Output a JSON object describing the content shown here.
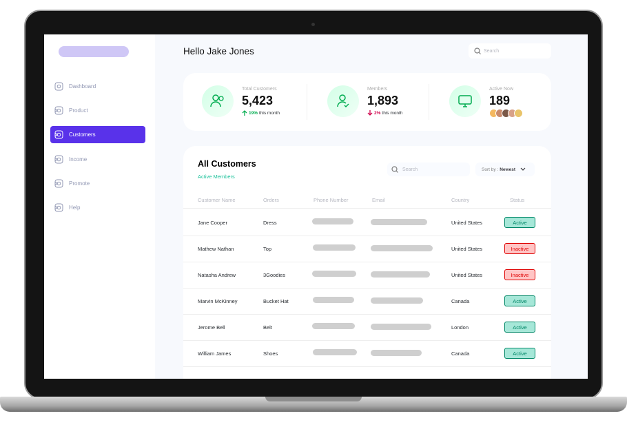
{
  "sidebar": {
    "items": [
      {
        "label": "Dashboard",
        "active": false,
        "chevron": false
      },
      {
        "label": "Product",
        "active": false,
        "chevron": true
      },
      {
        "label": "Customers",
        "active": true,
        "chevron": true
      },
      {
        "label": "Income",
        "active": false,
        "chevron": true
      },
      {
        "label": "Promote",
        "active": false,
        "chevron": true
      },
      {
        "label": "Help",
        "active": false,
        "chevron": true
      }
    ]
  },
  "header": {
    "greeting": "Hello Jake Jones",
    "search_placeholder": "Search"
  },
  "stats": [
    {
      "label": "Total Customers",
      "value": "5,423",
      "change": "19%",
      "period": "this month",
      "trend": "up",
      "change_color": "#00ac4f"
    },
    {
      "label": "Members",
      "value": "1,893",
      "change": "2%",
      "period": "this month",
      "trend": "down",
      "change_color": "#d0004b"
    },
    {
      "label": "Active Now",
      "value": "189"
    }
  ],
  "table": {
    "title": "All Customers",
    "subtitle": "Active Members",
    "search_placeholder": "Search",
    "sort_label": "Sort by :",
    "sort_value": "Newest",
    "columns": [
      "Customer Name",
      "Orders",
      "Phone Number",
      "Email",
      "Country",
      "Status"
    ],
    "rows": [
      {
        "name": "Jane Cooper",
        "order": "Dress",
        "country": "United States",
        "status": {
          "label": "Active",
          "color": "#008767",
          "background": "#a6e7d8"
        }
      },
      {
        "name": "Mathew Nathan",
        "order": "Top",
        "country": "United States",
        "status": {
          "label": "Inactive",
          "color": "#df0404",
          "background": "#ffc5c5"
        }
      },
      {
        "name": "Natasha Andrew",
        "order": "3Goodies",
        "country": "United States",
        "status": {
          "label": "Inactive",
          "color": "#df0404",
          "background": "#ffc5c5"
        }
      },
      {
        "name": "Marvin McKinney",
        "order": "Bucket Hat",
        "country": "Canada",
        "status": {
          "label": "Active",
          "color": "#008767",
          "background": "#a6e7d8"
        }
      },
      {
        "name": "Jerome Bell",
        "order": "Belt",
        "country": "London",
        "status": {
          "label": "Active",
          "color": "#008767",
          "background": "#a6e7d8"
        }
      },
      {
        "name": "William James",
        "order": "Shoes",
        "country": "Canada",
        "status": {
          "label": "Active",
          "color": "#008767",
          "background": "#a6e7d8"
        }
      }
    ]
  }
}
